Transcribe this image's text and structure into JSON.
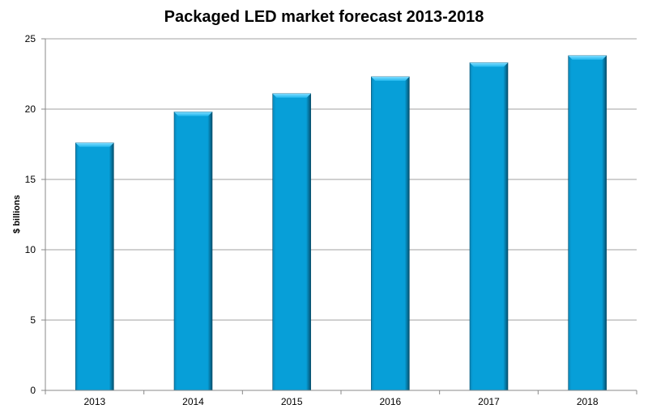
{
  "chart_data": {
    "type": "bar",
    "title": "Packaged LED market forecast 2013-2018",
    "xlabel": "",
    "ylabel": "$ billions",
    "categories": [
      "2013",
      "2014",
      "2015",
      "2016",
      "2017",
      "2018"
    ],
    "values": [
      17.6,
      19.8,
      21.1,
      22.3,
      23.3,
      23.8
    ],
    "ylim": [
      0,
      25
    ],
    "yticks": [
      "0",
      "5",
      "10",
      "15",
      "20",
      "25"
    ],
    "grid": true,
    "legend": "none",
    "bar_color": "#079fd8"
  }
}
